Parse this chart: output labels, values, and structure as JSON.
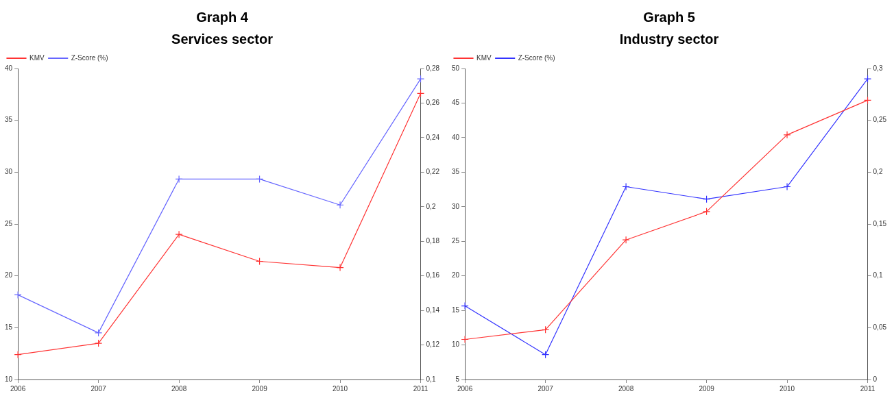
{
  "chart_data": [
    {
      "type": "line",
      "title": "Graph 4",
      "subtitle": "Services sector",
      "categories": [
        "2006",
        "2007",
        "2008",
        "2009",
        "2010",
        "2011"
      ],
      "series": [
        {
          "name": "KMV",
          "color": "#ff3333",
          "values": [
            12.4,
            13.5,
            24.0,
            21.4,
            20.8,
            37.6
          ]
        },
        {
          "name": "Z-Score (%)",
          "color": "#6666ff",
          "axis": "y2",
          "values": [
            0.149,
            0.127,
            0.216,
            0.216,
            0.201,
            0.274
          ]
        }
      ],
      "ylim": [
        10,
        40
      ],
      "yticks": [
        10,
        15,
        20,
        25,
        30,
        35,
        40
      ],
      "y2lim": [
        0.1,
        0.28
      ],
      "y2ticks": [
        {
          "value": 0.1,
          "label": "0,1"
        },
        {
          "value": 0.12,
          "label": "0,12"
        },
        {
          "value": 0.14,
          "label": "0,14"
        },
        {
          "value": 0.16,
          "label": "0,16"
        },
        {
          "value": 0.18,
          "label": "0,18"
        },
        {
          "value": 0.2,
          "label": "0,2"
        },
        {
          "value": 0.22,
          "label": "0,22"
        },
        {
          "value": 0.24,
          "label": "0,24"
        },
        {
          "value": 0.26,
          "label": "0,26"
        },
        {
          "value": 0.28,
          "label": "0,28"
        }
      ],
      "legend": "top left",
      "marker": "cross",
      "line_style": "solid"
    },
    {
      "type": "line",
      "title": "Graph 5",
      "subtitle": "Industry sector",
      "categories": [
        "2006",
        "2007",
        "2008",
        "2009",
        "2010",
        "2011"
      ],
      "series": [
        {
          "name": "KMV",
          "color": "#ff3333",
          "values": [
            10.8,
            12.2,
            25.2,
            29.3,
            40.4,
            45.4
          ]
        },
        {
          "name": "Z-Score (%)",
          "color": "#3333ff",
          "axis": "y2",
          "values": [
            0.071,
            0.024,
            0.186,
            0.174,
            0.186,
            0.29
          ]
        }
      ],
      "ylim": [
        5,
        50
      ],
      "yticks": [
        5,
        10,
        15,
        20,
        25,
        30,
        35,
        40,
        45,
        50
      ],
      "y2lim": [
        0,
        0.3
      ],
      "y2ticks": [
        0,
        {
          "value": 0.05,
          "label": "0,05"
        },
        {
          "value": 0.1,
          "label": "0,1"
        },
        {
          "value": 0.15,
          "label": "0,15"
        },
        {
          "value": 0.2,
          "label": "0,2"
        },
        {
          "value": 0.25,
          "label": "0,25"
        },
        {
          "value": 0.3,
          "label": "0,3"
        }
      ],
      "legend": "top left",
      "marker": "cross",
      "line_style": "solid"
    }
  ]
}
